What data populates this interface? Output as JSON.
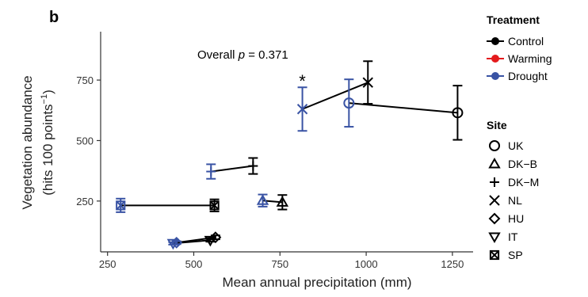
{
  "chart_data": {
    "type": "scatter",
    "panel_label": "b",
    "annotation": {
      "prefix": "Overall ",
      "italic": "p",
      "suffix": " = 0.371"
    },
    "ylabel_line1": "Vegetation abundance",
    "ylabel_line2_main": "(hits 100 points",
    "ylabel_line2_sup": "−1",
    "ylabel_line2_end": ")",
    "xlabel": "Mean annual precipitation (mm)",
    "xlim": [
      230,
      1310
    ],
    "ylim": [
      40,
      950
    ],
    "xticks": [
      "250",
      "500",
      "750",
      "1000",
      "1250"
    ],
    "xtick_values": [
      250,
      500,
      750,
      1000,
      1250
    ],
    "yticks": [
      "250",
      "500",
      "750"
    ],
    "ytick_values": [
      250,
      500,
      750
    ],
    "significance": {
      "label": "*",
      "x": 815,
      "y": 760
    },
    "legend_treatment": {
      "title": "Treatment",
      "items": [
        {
          "label": "Control",
          "color": "#000000"
        },
        {
          "label": "Warming",
          "color": "#e41a1c"
        },
        {
          "label": "Drought",
          "color": "#3953a4"
        }
      ]
    },
    "legend_site": {
      "title": "Site",
      "items": [
        {
          "label": "UK",
          "shape": "circle"
        },
        {
          "label": "DK−B",
          "shape": "triangle-up"
        },
        {
          "label": "DK−M",
          "shape": "plus"
        },
        {
          "label": "NL",
          "shape": "cross"
        },
        {
          "label": "HU",
          "shape": "diamond"
        },
        {
          "label": "IT",
          "shape": "triangle-down"
        },
        {
          "label": "SP",
          "shape": "square-cross"
        }
      ]
    },
    "colors": {
      "control": "#000000",
      "drought": "#3953a4",
      "warming": "#e41a1c"
    },
    "sites": [
      {
        "site": "UK",
        "shape": "circle",
        "control": {
          "x": 1265,
          "y": 615,
          "err": 112
        },
        "drought": {
          "x": 950,
          "y": 655,
          "err": 98
        }
      },
      {
        "site": "NL",
        "shape": "cross",
        "control": {
          "x": 1005,
          "y": 740,
          "err": 88
        },
        "drought": {
          "x": 815,
          "y": 630,
          "err": 90
        }
      },
      {
        "site": "DK−M",
        "shape": "plus",
        "control": {
          "x": 672,
          "y": 395,
          "err": 33
        },
        "drought": {
          "x": 550,
          "y": 372,
          "err": 30
        }
      },
      {
        "site": "DK−B",
        "shape": "triangle-up",
        "control": {
          "x": 757,
          "y": 245,
          "err": 30
        },
        "drought": {
          "x": 700,
          "y": 252,
          "err": 25
        }
      },
      {
        "site": "SP",
        "shape": "square-cross",
        "control": {
          "x": 560,
          "y": 232,
          "err": 25
        },
        "drought": {
          "x": 288,
          "y": 232,
          "err": 28
        }
      },
      {
        "site": "HU",
        "shape": "diamond",
        "control": {
          "x": 563,
          "y": 100,
          "err": 8
        },
        "drought": {
          "x": 450,
          "y": 78,
          "err": 6
        }
      },
      {
        "site": "IT",
        "shape": "triangle-down",
        "control": {
          "x": 548,
          "y": 88,
          "err": 6
        },
        "drought": {
          "x": 440,
          "y": 75,
          "err": 5
        }
      }
    ]
  }
}
